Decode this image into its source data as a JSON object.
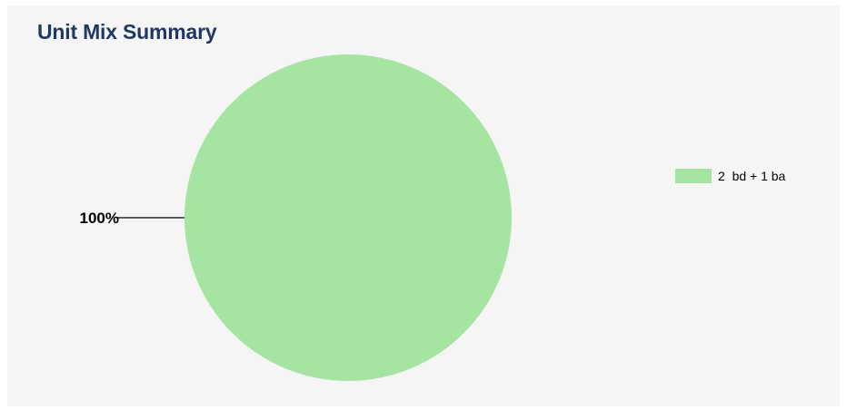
{
  "chart_data": {
    "type": "pie",
    "title": "Unit Mix Summary",
    "slices": [
      {
        "label": "2  bd + 1 ba",
        "value": 100,
        "display_label": "100%",
        "color": "#a6e4a2"
      }
    ],
    "legend_position": "right"
  },
  "colors": {
    "panel_background": "#f5f5f5",
    "title": "#1f3864",
    "leader_line": "#000000"
  }
}
